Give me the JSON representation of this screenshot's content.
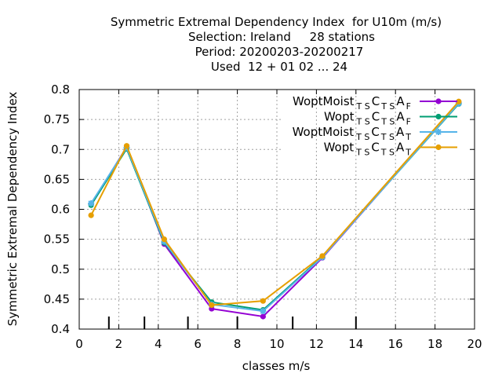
{
  "chart_data": {
    "type": "line",
    "title_lines": [
      "Symmetric Extremal Dependency Index  for U10m (m/s)",
      "Selection: Ireland     28 stations",
      "Period: 20200203-20200217",
      "Used  12 + 01 02 ... 24"
    ],
    "xlabel": "classes m/s",
    "ylabel": "Symmetric Extremal Dependency Index",
    "xlim": [
      0,
      20
    ],
    "ylim": [
      0.4,
      0.8
    ],
    "xticks": [
      0,
      2,
      4,
      6,
      8,
      10,
      12,
      14,
      16,
      18,
      20
    ],
    "yticks": [
      0.4,
      0.45,
      0.5,
      0.55,
      0.6,
      0.65,
      0.7,
      0.75,
      0.8
    ],
    "grid": true,
    "legend_position": "top-right",
    "class_limits": [
      1.5,
      3.3,
      5.5,
      8.0,
      10.8,
      14.0
    ],
    "series": [
      {
        "name_main": "WoptMoist",
        "name_sub1": "TS",
        "name_mid": "C",
        "name_sub2": "TS",
        "name_end": "A",
        "name_sub3": "F",
        "color": "#9400d3",
        "marker": "circle",
        "points": [
          [
            0.6,
            0.608
          ],
          [
            2.4,
            0.704
          ],
          [
            4.3,
            0.542
          ],
          [
            6.7,
            0.434
          ],
          [
            9.3,
            0.421
          ],
          [
            12.3,
            0.519
          ],
          [
            19.2,
            0.778
          ]
        ]
      },
      {
        "name_main": "Wopt",
        "name_sub1": "TS",
        "name_mid": "C",
        "name_sub2": "TS",
        "name_end": "A",
        "name_sub3": "F",
        "color": "#009e73",
        "marker": "circle",
        "points": [
          [
            0.6,
            0.607
          ],
          [
            2.4,
            0.701
          ],
          [
            4.3,
            0.544
          ],
          [
            6.7,
            0.445
          ],
          [
            9.3,
            0.432
          ],
          [
            12.3,
            0.521
          ],
          [
            19.2,
            0.776
          ]
        ]
      },
      {
        "name_main": "WoptMoist",
        "name_sub1": "TS",
        "name_mid": "C",
        "name_sub2": "TS",
        "name_end": "A",
        "name_sub3": "T",
        "color": "#56b4e9",
        "marker": "star",
        "points": [
          [
            0.6,
            0.61
          ],
          [
            2.4,
            0.703
          ],
          [
            4.3,
            0.546
          ],
          [
            6.7,
            0.441
          ],
          [
            9.3,
            0.43
          ],
          [
            12.3,
            0.52
          ],
          [
            19.2,
            0.777
          ]
        ]
      },
      {
        "name_main": "Wopt",
        "name_sub1": "TS",
        "name_mid": "C",
        "name_sub2": "TS",
        "name_end": "A",
        "name_sub3": "T",
        "color": "#e69f00",
        "marker": "circle",
        "points": [
          [
            0.6,
            0.59
          ],
          [
            2.4,
            0.706
          ],
          [
            4.3,
            0.55
          ],
          [
            6.7,
            0.44
          ],
          [
            9.3,
            0.447
          ],
          [
            12.3,
            0.522
          ],
          [
            19.2,
            0.78
          ]
        ]
      }
    ]
  }
}
